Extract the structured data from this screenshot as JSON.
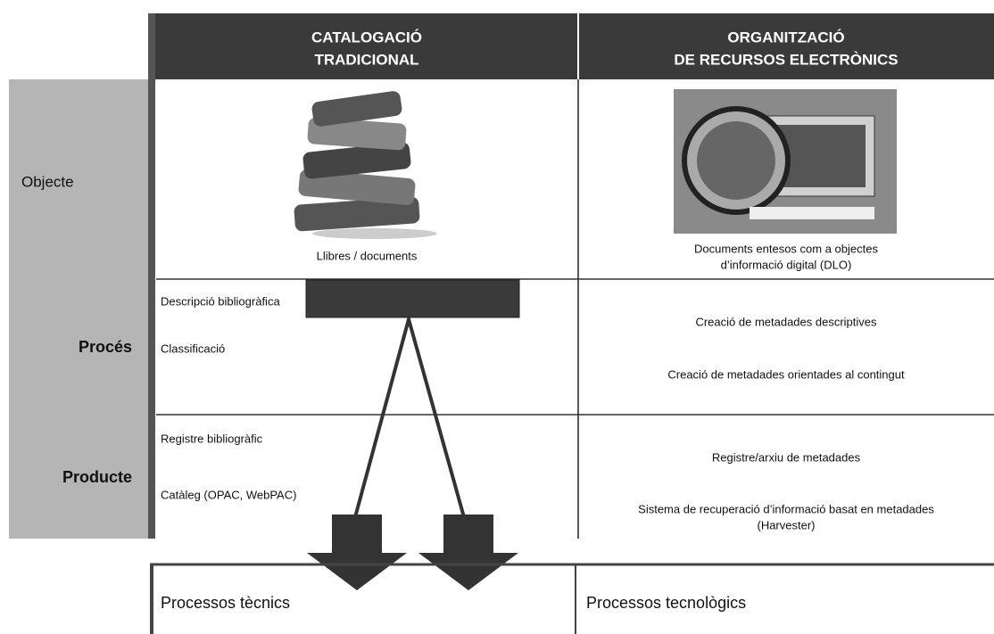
{
  "header": {
    "columns": [
      {
        "lines": [
          "CATALOGACIÓ",
          "TRADICIONAL"
        ]
      },
      {
        "lines": [
          "ORGANITZACIÓ",
          "DE RECURSOS ELECTRÒNICS"
        ]
      }
    ]
  },
  "rows": [
    {
      "label": "Objecte",
      "left": [
        "Llibres / documents"
      ],
      "right": [
        "Documents entesos com a objectes",
        "d’informació digital (DLO)"
      ]
    },
    {
      "label": "Procés",
      "left": [
        "Descripció bibliogràfica",
        "Classificació"
      ],
      "right": [
        "Creació de metadades descriptives",
        "Creació de metadades orientades al contingut"
      ]
    },
    {
      "label": "Producte",
      "left": [
        "Registre bibliogràfic",
        "Catàleg (OPAC, WebPAC)"
      ],
      "right": [
        "Registre/arxiu de metadades",
        "Sistema de recuperació d’informació basat en metadades",
        "(Harvester)"
      ]
    }
  ],
  "bottom": {
    "left": "Processos tècnics",
    "right": "Processos tecnològics"
  }
}
